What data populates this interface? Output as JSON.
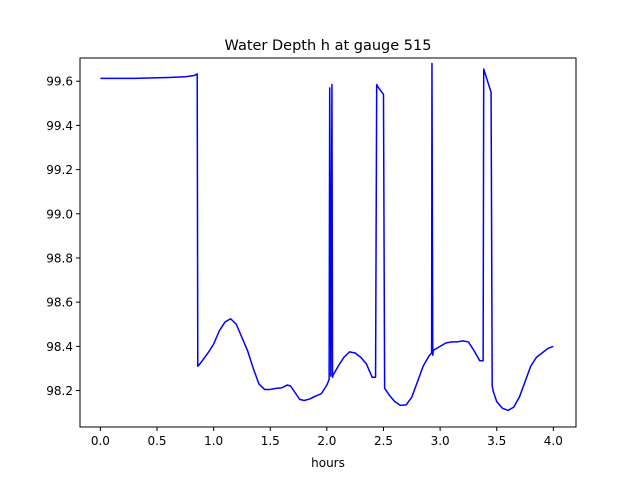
{
  "chart_data": {
    "type": "line",
    "title": "Water Depth h at gauge 515",
    "xlabel": "hours",
    "ylabel": "",
    "xlim": [
      -0.18,
      4.2
    ],
    "ylim": [
      98.035,
      99.705
    ],
    "xticks": [
      0.0,
      0.5,
      1.0,
      1.5,
      2.0,
      2.5,
      3.0,
      3.5,
      4.0
    ],
    "xtick_labels": [
      "0.0",
      "0.5",
      "1.0",
      "1.5",
      "2.0",
      "2.5",
      "3.0",
      "3.5",
      "4.0"
    ],
    "yticks": [
      98.2,
      98.4,
      98.6,
      98.8,
      99.0,
      99.2,
      99.4,
      99.6
    ],
    "ytick_labels": [
      "98.2",
      "98.4",
      "98.6",
      "98.8",
      "99.0",
      "99.2",
      "99.4",
      "99.6"
    ],
    "grid": false,
    "series": [
      {
        "color": "#0000ff",
        "x": [
          0.0,
          0.3,
          0.6,
          0.75,
          0.83,
          0.855,
          0.86,
          0.87,
          0.9,
          0.95,
          1.0,
          1.05,
          1.1,
          1.15,
          1.2,
          1.25,
          1.3,
          1.35,
          1.4,
          1.45,
          1.5,
          1.55,
          1.6,
          1.65,
          1.68,
          1.72,
          1.76,
          1.8,
          1.85,
          1.9,
          1.95,
          2.0,
          2.02,
          2.025,
          2.035,
          2.045,
          2.05,
          2.055,
          2.1,
          2.15,
          2.2,
          2.25,
          2.3,
          2.35,
          2.4,
          2.43,
          2.44,
          2.45,
          2.5,
          2.51,
          2.55,
          2.6,
          2.65,
          2.7,
          2.75,
          2.8,
          2.85,
          2.9,
          2.925,
          2.928,
          2.935,
          2.94,
          2.95,
          3.0,
          3.05,
          3.1,
          3.15,
          3.2,
          3.25,
          3.3,
          3.35,
          3.38,
          3.385,
          3.45,
          3.46,
          3.47,
          3.5,
          3.55,
          3.6,
          3.65,
          3.7,
          3.75,
          3.8,
          3.85,
          3.9,
          3.95,
          4.0
        ],
        "y": [
          99.613,
          99.613,
          99.617,
          99.62,
          99.626,
          99.633,
          98.31,
          98.315,
          98.335,
          98.37,
          98.41,
          98.47,
          98.51,
          98.525,
          98.5,
          98.44,
          98.38,
          98.3,
          98.23,
          98.205,
          98.205,
          98.21,
          98.212,
          98.225,
          98.22,
          98.19,
          98.16,
          98.155,
          98.162,
          98.175,
          98.185,
          98.225,
          98.25,
          99.57,
          98.265,
          99.585,
          98.26,
          98.27,
          98.31,
          98.35,
          98.375,
          98.37,
          98.35,
          98.32,
          98.26,
          98.26,
          99.585,
          99.575,
          99.54,
          98.21,
          98.18,
          98.15,
          98.133,
          98.135,
          98.17,
          98.24,
          98.31,
          98.355,
          98.37,
          99.68,
          98.36,
          98.38,
          98.385,
          98.4,
          98.415,
          98.42,
          98.42,
          98.425,
          98.42,
          98.38,
          98.335,
          98.335,
          99.655,
          99.55,
          98.22,
          98.195,
          98.15,
          98.12,
          98.11,
          98.125,
          98.17,
          98.24,
          98.31,
          98.35,
          98.37,
          98.39,
          98.4
        ]
      }
    ]
  }
}
